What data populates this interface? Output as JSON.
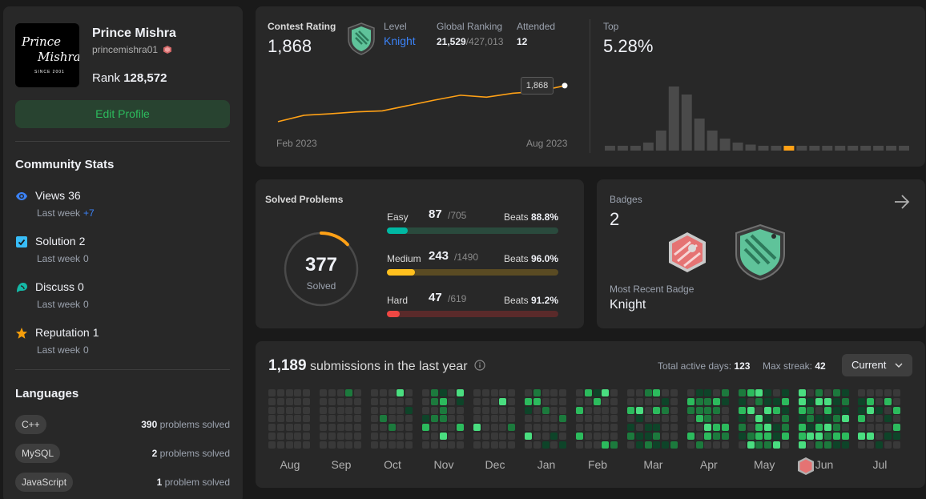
{
  "profile": {
    "name": "Prince Mishra",
    "username": "princemishra01",
    "rank_label": "Rank",
    "rank_value": "128,572",
    "edit_button": "Edit Profile",
    "logo_text_line1": "Prince",
    "logo_text_line2": "Mishra",
    "logo_since": "SINCE 2001"
  },
  "community": {
    "title": "Community Stats",
    "items": [
      {
        "label": "Views",
        "value": "36",
        "sub_label": "Last week",
        "sub_value": "+7",
        "icon": "eye-icon",
        "color": "#3b82f6"
      },
      {
        "label": "Solution",
        "value": "2",
        "sub_label": "Last week",
        "sub_value": "0",
        "icon": "solution-check-icon",
        "color": "#38bdf8"
      },
      {
        "label": "Discuss",
        "value": "0",
        "sub_label": "Last week",
        "sub_value": "0",
        "icon": "discuss-icon",
        "color": "#14b8a6"
      },
      {
        "label": "Reputation",
        "value": "1",
        "sub_label": "Last week",
        "sub_value": "0",
        "icon": "star-icon",
        "color": "#f59e0b"
      }
    ]
  },
  "languages": {
    "title": "Languages",
    "items": [
      {
        "name": "C++",
        "count": "390",
        "suffix": "problems solved"
      },
      {
        "name": "MySQL",
        "count": "2",
        "suffix": "problems solved"
      },
      {
        "name": "JavaScript",
        "count": "1",
        "suffix": "problem solved"
      }
    ]
  },
  "contest": {
    "rating_label": "Contest Rating",
    "rating_value": "1,868",
    "level_label": "Level",
    "level_value": "Knight",
    "global_label": "Global Ranking",
    "global_rank": "21,529",
    "global_total": "/427,013",
    "attended_label": "Attended",
    "attended_value": "12",
    "top_label": "Top",
    "top_value": "5.28%",
    "tooltip": "1,868",
    "x_start": "Feb 2023",
    "x_end": "Aug 2023"
  },
  "chart_data": [
    {
      "type": "line",
      "title": "Contest Rating",
      "x": [
        "Feb 2023",
        "",
        "",
        "",
        "",
        "",
        "",
        "",
        "",
        "",
        "",
        "Aug 2023"
      ],
      "values": [
        1500,
        1565,
        1580,
        1600,
        1610,
        1665,
        1720,
        1770,
        1750,
        1790,
        1810,
        1868
      ],
      "ylim": [
        1450,
        1900
      ],
      "xlabel": "",
      "ylabel": ""
    },
    {
      "type": "bar",
      "title": "Top 5.28%",
      "values": [
        1,
        1,
        1,
        2,
        5,
        16,
        14,
        8,
        5,
        3,
        2,
        1.5,
        1,
        1,
        1,
        1,
        1,
        1,
        1,
        1,
        1,
        1,
        1,
        1
      ],
      "highlight_index": 14,
      "xlabel": "",
      "ylabel": ""
    }
  ],
  "solved": {
    "title": "Solved Problems",
    "total": "377",
    "total_label": "Solved",
    "ring_fraction": 0.13,
    "rows": [
      {
        "name": "Easy",
        "solved": "87",
        "total": "/705",
        "beats_label": "Beats",
        "beats": "88.8%",
        "fraction": 0.123,
        "color": "#00b8a3",
        "track": "#2a4a3d"
      },
      {
        "name": "Medium",
        "solved": "243",
        "total": "/1490",
        "beats_label": "Beats",
        "beats": "96.0%",
        "fraction": 0.163,
        "color": "#ffc01e",
        "track": "#5a4b23"
      },
      {
        "name": "Hard",
        "solved": "47",
        "total": "/619",
        "beats_label": "Beats",
        "beats": "91.2%",
        "fraction": 0.076,
        "color": "#ef4743",
        "track": "#5a2a2a"
      }
    ]
  },
  "badges": {
    "title": "Badges",
    "count": "2",
    "recent_label": "Most Recent Badge",
    "recent_value": "Knight"
  },
  "heatmap": {
    "count": "1,189",
    "label": "submissions in the last year",
    "active_label": "Total active days:",
    "active_value": "123",
    "streak_label": "Max streak:",
    "streak_value": "42",
    "dropdown": "Current",
    "months": [
      "Aug",
      "Sep",
      "Oct",
      "Nov",
      "Dec",
      "Jan",
      "Feb",
      "Mar",
      "Apr",
      "May",
      "Jun",
      "Jul"
    ]
  }
}
